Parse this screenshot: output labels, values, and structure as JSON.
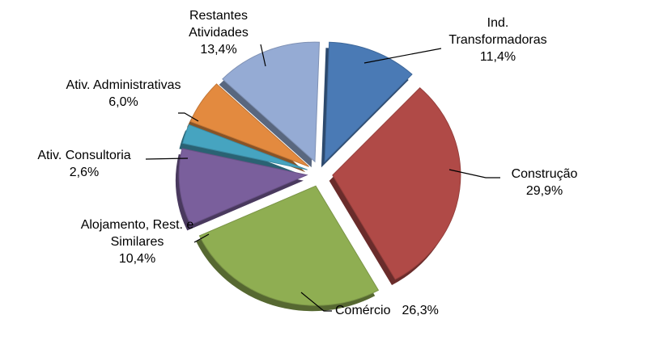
{
  "chart_data": {
    "type": "pie",
    "categories": [
      "Ind. Transformadoras",
      "Construção",
      "Comércio",
      "Alojamento, Rest. e Similares",
      "Ativ. Consultoria",
      "Ativ. Administrativas",
      "Restantes Atividades"
    ],
    "values": [
      11.4,
      29.9,
      26.3,
      10.4,
      2.6,
      6.0,
      13.4
    ],
    "value_labels": [
      "11,4%",
      "29,9%",
      "26,3%",
      "10,4%",
      "2,6%",
      "6,0%",
      "13,4%"
    ],
    "colors": [
      "#4a7ab5",
      "#b04a47",
      "#8fae52",
      "#7a5f9c",
      "#46a4c0",
      "#e38a3f",
      "#95abd4"
    ]
  }
}
